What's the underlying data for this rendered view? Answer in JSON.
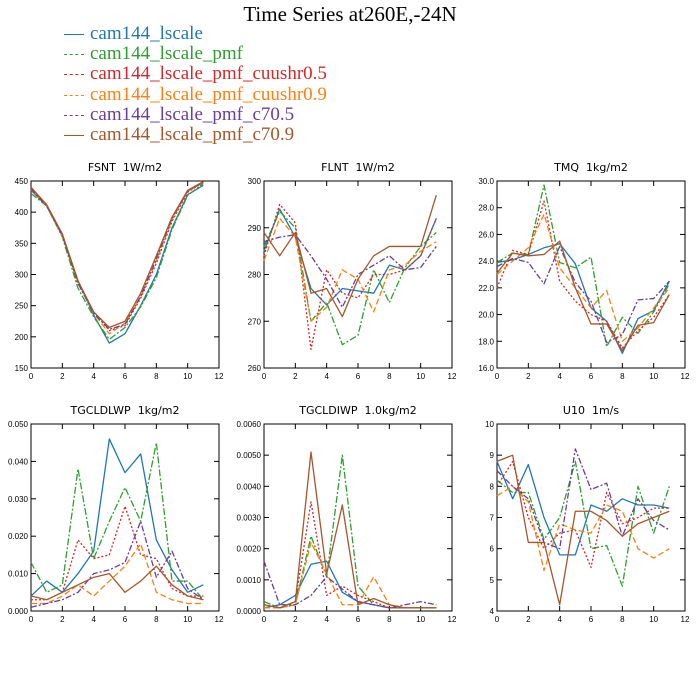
{
  "title": "Time Series at260E,-24N",
  "legend": [
    {
      "name": "cam144_lscale",
      "color": "#1f77b4",
      "dash": ""
    },
    {
      "name": "cam144_lscale_pmf",
      "color": "#2ca02c",
      "dash": "7,2,2,2"
    },
    {
      "name": "cam144_lscale_pmf_cuushr0.5",
      "color": "#d62728",
      "dash": "2,2"
    },
    {
      "name": "cam144_lscale_pmf_cuushr0.9",
      "color": "#ff7f0e",
      "dash": "6,3"
    },
    {
      "name": "cam144_lscale_pmf_c70.5",
      "color": "#6a3d9a",
      "dash": "6,2,2,2"
    },
    {
      "name": "cam144_lscale_pmf_c70.9",
      "color": "#a65628",
      "dash": ""
    }
  ],
  "chart_data": [
    {
      "type": "line",
      "title": "FSNT",
      "units": "1W/m2",
      "x": [
        0,
        1,
        2,
        3,
        4,
        5,
        6,
        7,
        8,
        9,
        10,
        11
      ],
      "xlim": [
        0,
        12
      ],
      "xticks": [
        "0",
        "2",
        "4",
        "6",
        "8",
        "10",
        "12"
      ],
      "ylim": [
        150,
        450
      ],
      "yticks": [
        "150",
        "200",
        "250",
        "300",
        "350",
        "400",
        "450"
      ],
      "series": [
        {
          "name": "cam144_lscale",
          "values": [
            435,
            410,
            362,
            290,
            235,
            190,
            205,
            250,
            300,
            375,
            428,
            443
          ]
        },
        {
          "name": "cam144_lscale_pmf",
          "values": [
            430,
            410,
            360,
            278,
            232,
            196,
            215,
            248,
            295,
            372,
            427,
            446
          ]
        },
        {
          "name": "cam144_lscale_pmf_cuushr0.5",
          "values": [
            438,
            410,
            365,
            285,
            240,
            210,
            218,
            262,
            318,
            385,
            432,
            448
          ]
        },
        {
          "name": "cam144_lscale_pmf_cuushr0.9",
          "values": [
            436,
            411,
            362,
            288,
            238,
            205,
            222,
            264,
            322,
            388,
            434,
            448
          ]
        },
        {
          "name": "cam144_lscale_pmf_c70.5",
          "values": [
            437,
            410,
            363,
            286,
            238,
            212,
            220,
            265,
            325,
            390,
            434,
            448
          ]
        },
        {
          "name": "cam144_lscale_pmf_c70.9",
          "values": [
            440,
            412,
            365,
            290,
            240,
            215,
            225,
            270,
            330,
            392,
            435,
            449
          ]
        }
      ]
    },
    {
      "type": "line",
      "title": "FLNT",
      "units": "1W/m2",
      "x": [
        0,
        1,
        2,
        3,
        4,
        5,
        6,
        7,
        8,
        9,
        10,
        11
      ],
      "xlim": [
        0,
        12
      ],
      "xticks": [
        "0",
        "2",
        "4",
        "6",
        "8",
        "10",
        "12"
      ],
      "ylim": [
        260,
        300
      ],
      "yticks": [
        "260",
        "270",
        "280",
        "290",
        "300"
      ],
      "series": [
        {
          "name": "cam144_lscale",
          "values": [
            285,
            294,
            288,
            277,
            273.5,
            277,
            276.5,
            276,
            282,
            281,
            284,
            292
          ]
        },
        {
          "name": "cam144_lscale_pmf",
          "values": [
            286,
            293.5,
            290,
            270,
            274,
            265,
            267,
            281,
            274,
            281.5,
            286,
            289
          ]
        },
        {
          "name": "cam144_lscale_pmf_cuushr0.5",
          "values": [
            284,
            295,
            291,
            264,
            281,
            276,
            275,
            280,
            280,
            281,
            284,
            292
          ]
        },
        {
          "name": "cam144_lscale_pmf_cuushr0.9",
          "values": [
            283,
            292,
            288,
            270,
            273,
            281,
            279,
            272,
            281,
            282,
            285,
            287
          ]
        },
        {
          "name": "cam144_lscale_pmf_c70.5",
          "values": [
            287,
            288,
            288.5,
            284,
            279,
            273,
            280,
            282,
            284,
            281,
            281.5,
            286
          ]
        },
        {
          "name": "cam144_lscale_pmf_c70.9",
          "values": [
            289,
            284,
            289,
            276,
            277,
            271,
            279,
            284,
            286,
            286,
            286,
            297
          ]
        }
      ]
    },
    {
      "type": "line",
      "title": "TMQ",
      "units": "1kg/m2",
      "x": [
        0,
        1,
        2,
        3,
        4,
        5,
        6,
        7,
        8,
        9,
        10,
        11
      ],
      "xlim": [
        0,
        12
      ],
      "xticks": [
        "0",
        "2",
        "4",
        "6",
        "8",
        "10",
        "12"
      ],
      "ylim": [
        16,
        30
      ],
      "yticks": [
        "16.0",
        "18.0",
        "20.0",
        "22.0",
        "24.0",
        "26.0",
        "28.0",
        "30.0"
      ],
      "series": [
        {
          "name": "cam144_lscale",
          "values": [
            23.9,
            24.1,
            24.5,
            25.0,
            25.3,
            23.8,
            20.5,
            19.5,
            17.1,
            19.7,
            20.3,
            22.5
          ]
        },
        {
          "name": "cam144_lscale_pmf",
          "values": [
            23.9,
            24.6,
            24.5,
            29.7,
            23.9,
            23.5,
            24.3,
            17.6,
            19.8,
            18.6,
            20.2,
            22.3
          ]
        },
        {
          "name": "cam144_lscale_pmf_cuushr0.5",
          "values": [
            22.0,
            24.8,
            24.5,
            28.5,
            22.5,
            21.0,
            20.0,
            19.5,
            17.5,
            18.8,
            19.8,
            21.5
          ]
        },
        {
          "name": "cam144_lscale_pmf_cuushr0.9",
          "values": [
            23.0,
            24.0,
            25.0,
            27.5,
            23.5,
            22.0,
            20.5,
            21.8,
            18.0,
            19.0,
            20.5,
            22.0
          ]
        },
        {
          "name": "cam144_lscale_pmf_c70.5",
          "values": [
            23.6,
            24.2,
            23.9,
            22.3,
            25.1,
            22.4,
            21.0,
            17.9,
            18.5,
            21.1,
            21.2,
            22.5
          ]
        },
        {
          "name": "cam144_lscale_pmf_c70.9",
          "values": [
            23.1,
            24.6,
            24.4,
            24.5,
            25.5,
            22.0,
            19.3,
            19.3,
            17.3,
            19.2,
            19.4,
            21.5
          ]
        }
      ]
    },
    {
      "type": "line",
      "title": "TGCLDLWP",
      "units": "1kg/m2",
      "x": [
        0,
        1,
        2,
        3,
        4,
        5,
        6,
        7,
        8,
        9,
        10,
        11
      ],
      "xlim": [
        0,
        12
      ],
      "xticks": [
        "0",
        "2",
        "4",
        "6",
        "8",
        "10",
        "12"
      ],
      "ylim": [
        0,
        0.05
      ],
      "yticks": [
        "0.000",
        "0.010",
        "0.020",
        "0.030",
        "0.040",
        "0.050"
      ],
      "series": [
        {
          "name": "cam144_lscale",
          "values": [
            0.004,
            0.008,
            0.005,
            0.01,
            0.016,
            0.046,
            0.037,
            0.042,
            0.019,
            0.011,
            0.005,
            0.007
          ]
        },
        {
          "name": "cam144_lscale_pmf",
          "values": [
            0.013,
            0.005,
            0.007,
            0.038,
            0.014,
            0.024,
            0.033,
            0.024,
            0.045,
            0.008,
            0.008,
            0.003
          ]
        },
        {
          "name": "cam144_lscale_pmf_cuushr0.5",
          "values": [
            0.003,
            0.003,
            0.005,
            0.019,
            0.014,
            0.015,
            0.028,
            0.015,
            0.014,
            0.006,
            0.004,
            0.004
          ]
        },
        {
          "name": "cam144_lscale_pmf_cuushr0.9",
          "values": [
            0.002,
            0.002,
            0.004,
            0.007,
            0.004,
            0.008,
            0.012,
            0.018,
            0.005,
            0.003,
            0.002,
            0.002
          ]
        },
        {
          "name": "cam144_lscale_pmf_c70.5",
          "values": [
            0.001,
            0.002,
            0.003,
            0.005,
            0.01,
            0.011,
            0.013,
            0.024,
            0.009,
            0.016,
            0.006,
            0.003
          ]
        },
        {
          "name": "cam144_lscale_pmf_c70.9",
          "values": [
            0.004,
            0.003,
            0.005,
            0.007,
            0.009,
            0.01,
            0.005,
            0.008,
            0.012,
            0.007,
            0.004,
            0.003
          ]
        }
      ]
    },
    {
      "type": "line",
      "title": "TGCLDIWP",
      "units": "1.0kg/m2",
      "x": [
        0,
        1,
        2,
        3,
        4,
        5,
        6,
        7,
        8,
        9,
        10,
        11
      ],
      "xlim": [
        0,
        12
      ],
      "xticks": [
        "0",
        "2",
        "4",
        "6",
        "8",
        "10",
        "12"
      ],
      "ylim": [
        0,
        0.006
      ],
      "yticks": [
        "0.0000",
        "0.0010",
        "0.0020",
        "0.0030",
        "0.0040",
        "0.0050",
        "0.0060"
      ],
      "series": [
        {
          "name": "cam144_lscale",
          "values": [
            0.0001,
            0.0002,
            0.0005,
            0.0015,
            0.0016,
            0.0006,
            0.0003,
            0.0002,
            0.0001,
            0.0001,
            0.0001,
            0.0001
          ]
        },
        {
          "name": "cam144_lscale_pmf",
          "values": [
            0.0003,
            0.0001,
            0.0002,
            0.0024,
            0.0011,
            0.005,
            0.0008,
            0.0002,
            0.0001,
            0.0001,
            0.0001,
            0.0001
          ]
        },
        {
          "name": "cam144_lscale_pmf_cuushr0.5",
          "values": [
            0.0002,
            0.0001,
            0.0003,
            0.0035,
            0.0005,
            0.0008,
            0.0005,
            0.0003,
            0.0001,
            0.0001,
            0.0001,
            0.0001
          ]
        },
        {
          "name": "cam144_lscale_pmf_cuushr0.9",
          "values": [
            0.0001,
            0.0001,
            0.0002,
            0.0022,
            0.0012,
            0.0002,
            0.0002,
            0.0011,
            0.0002,
            0.0001,
            0.0001,
            0.0001
          ]
        },
        {
          "name": "cam144_lscale_pmf_c70.5",
          "values": [
            0.0016,
            0.0002,
            0.0002,
            0.0005,
            0.0011,
            0.0007,
            0.0003,
            0.0002,
            0.0001,
            0.0002,
            0.0003,
            0.0002
          ]
        },
        {
          "name": "cam144_lscale_pmf_c70.9",
          "values": [
            0.0002,
            0.0001,
            0.0003,
            0.0051,
            0.0012,
            0.0034,
            0.0002,
            0.0004,
            0.0002,
            0.0001,
            0.0001,
            0.0001
          ]
        }
      ]
    },
    {
      "type": "line",
      "title": "U10",
      "units": "1m/s",
      "x": [
        0,
        1,
        2,
        3,
        4,
        5,
        6,
        7,
        8,
        9,
        10,
        11
      ],
      "xlim": [
        0,
        12
      ],
      "xticks": [
        "0",
        "2",
        "4",
        "6",
        "8",
        "10",
        "12"
      ],
      "ylim": [
        4,
        10
      ],
      "yticks": [
        "4",
        "5",
        "6",
        "7",
        "8",
        "9",
        "10"
      ],
      "series": [
        {
          "name": "cam144_lscale",
          "values": [
            8.8,
            7.6,
            8.7,
            7.0,
            5.8,
            5.8,
            7.4,
            7.2,
            7.6,
            7.4,
            7.4,
            7.3
          ]
        },
        {
          "name": "cam144_lscale_pmf",
          "values": [
            8.2,
            7.8,
            7.8,
            6.3,
            7.0,
            8.8,
            6.0,
            6.1,
            4.8,
            8.0,
            6.5,
            8.0
          ]
        },
        {
          "name": "cam144_lscale_pmf_cuushr0.5",
          "values": [
            8.0,
            8.8,
            7.0,
            6.0,
            6.5,
            6.6,
            5.4,
            7.8,
            6.8,
            7.0,
            7.3,
            7.3
          ]
        },
        {
          "name": "cam144_lscale_pmf_cuushr0.9",
          "values": [
            7.7,
            8.0,
            7.5,
            5.3,
            6.8,
            6.6,
            6.5,
            7.4,
            7.2,
            6.0,
            5.7,
            6.0
          ]
        },
        {
          "name": "cam144_lscale_pmf_c70.5",
          "values": [
            8.5,
            8.0,
            7.6,
            6.2,
            6.0,
            9.2,
            7.9,
            8.1,
            6.4,
            7.6,
            6.9,
            6.6
          ]
        },
        {
          "name": "cam144_lscale_pmf_c70.9",
          "values": [
            8.8,
            9.0,
            6.2,
            6.2,
            4.2,
            7.2,
            7.2,
            6.9,
            6.4,
            6.8,
            7.0,
            7.2
          ]
        }
      ]
    }
  ]
}
